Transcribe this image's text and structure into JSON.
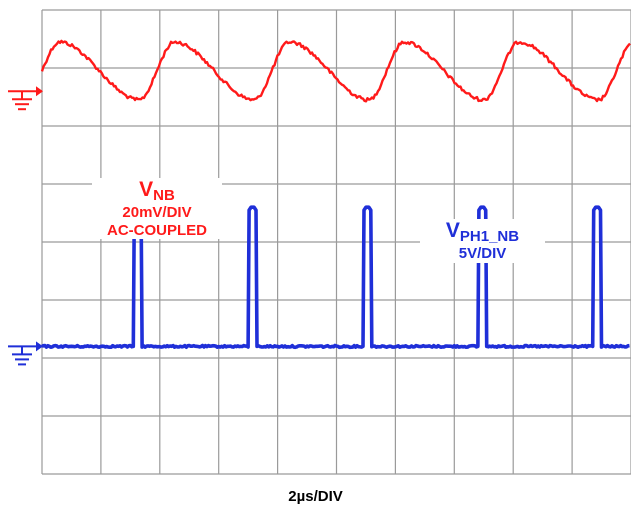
{
  "chart_data": {
    "type": "line",
    "title": "",
    "grid": true,
    "divisions": {
      "x": 10,
      "y": 8
    },
    "xlabel": "2µs/DIV",
    "x_unit": "µs",
    "x_range": [
      0,
      20
    ],
    "series": [
      {
        "name": "V_NB",
        "label_main": "V",
        "label_sub": "NB",
        "scale": "20mV/DIV",
        "coupling": "AC-COUPLED",
        "color": "#ff1a1a",
        "ground_marker_div": 1.4,
        "waveform": "sawtooth-like ripple",
        "period_us": 3.9,
        "peak_times_us": [
          4.5,
          8.4,
          12.3,
          16.2,
          20.0
        ],
        "min_div": 0.55,
        "max_div": 1.55
      },
      {
        "name": "V_PH1_NB",
        "label_main": "V",
        "label_sub": "PH1_NB",
        "scale": "5V/DIV",
        "color": "#1f2fd8",
        "ground_marker_div": 5.8,
        "waveform": "pulse train",
        "period_us": 3.9,
        "pulse_width_us": 0.3,
        "pulse_start_times_us": [
          3.1,
          7.0,
          10.9,
          14.8,
          18.7
        ],
        "low_level_div": 0,
        "high_level_div": 2.4
      }
    ]
  }
}
